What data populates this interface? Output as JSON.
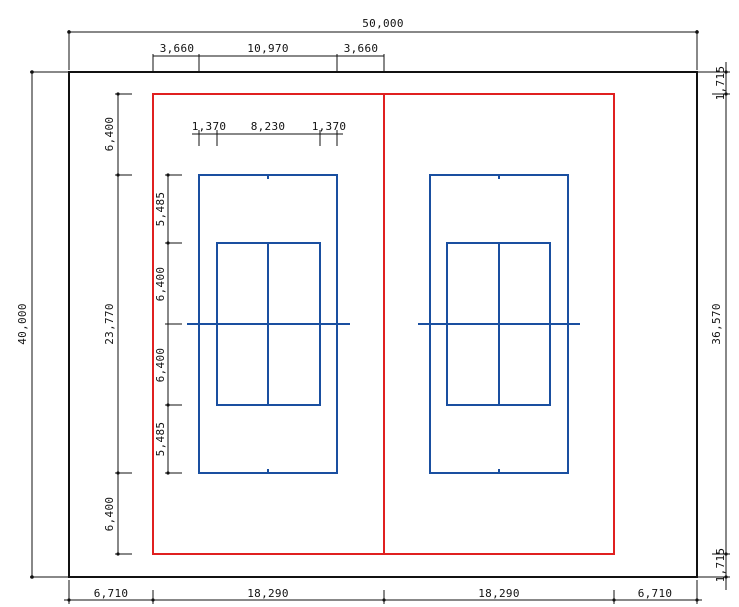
{
  "colors": {
    "outline": "#111111",
    "court_boundary": "#e02020",
    "tennis_court": "#1a4fa0"
  },
  "dimensions": {
    "top_overall": "50,000",
    "top_doubles": [
      "3,660",
      "10,970",
      "3,660"
    ],
    "inner_widths": [
      "1,370",
      "8,230",
      "1,370"
    ],
    "left_overall": "40,000",
    "left_segments": [
      "6,400",
      "23,770",
      "6,400"
    ],
    "inner_lengths": [
      "5,485",
      "6,400",
      "6,400",
      "5,485"
    ],
    "right_overall": "36,570",
    "right_top": "1,715",
    "right_bottom": "1,715",
    "bottom_segments": [
      "6,710",
      "18,290",
      "18,290",
      "6,710"
    ]
  }
}
